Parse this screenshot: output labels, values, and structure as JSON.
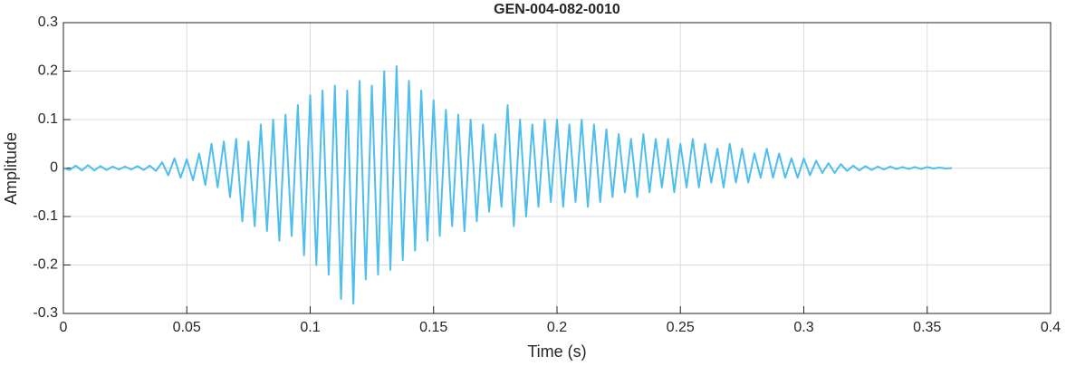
{
  "chart_data": {
    "type": "line",
    "title": "GEN-004-082-0010",
    "xlabel": "Time (s)",
    "ylabel": "Amplitude",
    "color": "#4DBEEE",
    "grid": true,
    "xlim": [
      0,
      0.4
    ],
    "ylim": [
      -0.3,
      0.3
    ],
    "xticks": [
      0,
      0.05,
      0.1,
      0.15,
      0.2,
      0.25,
      0.3,
      0.35,
      0.4
    ],
    "yticks": [
      -0.3,
      -0.2,
      -0.1,
      0,
      0.1,
      0.2,
      0.3
    ],
    "x": [
      0,
      0.0025,
      0.005,
      0.0075,
      0.01,
      0.0125,
      0.015,
      0.0175,
      0.02,
      0.0225,
      0.025,
      0.0275,
      0.03,
      0.0325,
      0.035,
      0.0375,
      0.04,
      0.0425,
      0.045,
      0.0475,
      0.05,
      0.0525,
      0.055,
      0.0575,
      0.06,
      0.0625,
      0.065,
      0.0675,
      0.07,
      0.0725,
      0.075,
      0.0775,
      0.08,
      0.0825,
      0.085,
      0.0875,
      0.09,
      0.0925,
      0.095,
      0.0975,
      0.1,
      0.1025,
      0.105,
      0.1075,
      0.11,
      0.1125,
      0.115,
      0.1175,
      0.12,
      0.1225,
      0.125,
      0.1275,
      0.13,
      0.1325,
      0.135,
      0.1375,
      0.14,
      0.1425,
      0.145,
      0.1475,
      0.15,
      0.1525,
      0.155,
      0.1575,
      0.16,
      0.1625,
      0.165,
      0.1675,
      0.17,
      0.1725,
      0.175,
      0.1775,
      0.18,
      0.1825,
      0.185,
      0.1875,
      0.19,
      0.1925,
      0.195,
      0.1975,
      0.2,
      0.2025,
      0.205,
      0.2075,
      0.21,
      0.2125,
      0.215,
      0.2175,
      0.22,
      0.2225,
      0.225,
      0.2275,
      0.23,
      0.2325,
      0.235,
      0.2375,
      0.24,
      0.2425,
      0.245,
      0.2475,
      0.25,
      0.2525,
      0.255,
      0.2575,
      0.26,
      0.2625,
      0.265,
      0.2675,
      0.27,
      0.2725,
      0.275,
      0.2775,
      0.28,
      0.2825,
      0.285,
      0.2875,
      0.29,
      0.2925,
      0.295,
      0.2975,
      0.3,
      0.3025,
      0.305,
      0.3075,
      0.31,
      0.3125,
      0.315,
      0.3175,
      0.32,
      0.3225,
      0.325,
      0.3275,
      0.33,
      0.3325,
      0.335,
      0.3375,
      0.34,
      0.3425,
      0.345,
      0.3475,
      0.35,
      0.3525,
      0.355,
      0.3575,
      0.36
    ],
    "values": [
      0,
      -0.004,
      0.005,
      -0.005,
      0.006,
      -0.005,
      0.004,
      -0.004,
      0.003,
      -0.003,
      0.003,
      -0.003,
      0.004,
      -0.004,
      0.005,
      -0.006,
      0.012,
      -0.015,
      0.02,
      -0.02,
      0.018,
      -0.025,
      0.03,
      -0.035,
      0.05,
      -0.04,
      0.055,
      -0.06,
      0.06,
      -0.11,
      0.055,
      -0.12,
      0.09,
      -0.13,
      0.1,
      -0.15,
      0.11,
      -0.14,
      0.13,
      -0.18,
      0.15,
      -0.2,
      0.16,
      -0.22,
      0.17,
      -0.27,
      0.16,
      -0.28,
      0.18,
      -0.23,
      0.17,
      -0.22,
      0.2,
      -0.21,
      0.21,
      -0.19,
      0.18,
      -0.17,
      0.16,
      -0.15,
      0.14,
      -0.14,
      0.12,
      -0.12,
      0.11,
      -0.13,
      0.1,
      -0.11,
      0.09,
      -0.09,
      0.07,
      -0.08,
      0.13,
      -0.12,
      0.1,
      -0.1,
      0.09,
      -0.08,
      0.1,
      -0.07,
      0.1,
      -0.08,
      0.09,
      -0.07,
      0.1,
      -0.08,
      0.09,
      -0.07,
      0.08,
      -0.06,
      0.07,
      -0.05,
      0.06,
      -0.06,
      0.07,
      -0.05,
      0.06,
      -0.04,
      0.06,
      -0.05,
      0.05,
      -0.04,
      0.06,
      -0.04,
      0.05,
      -0.03,
      0.04,
      -0.04,
      0.05,
      -0.03,
      0.04,
      -0.03,
      0.03,
      -0.02,
      0.04,
      -0.02,
      0.03,
      -0.02,
      0.02,
      -0.02,
      0.02,
      -0.015,
      0.015,
      -0.01,
      0.01,
      -0.01,
      0.008,
      -0.006,
      0.005,
      -0.005,
      0.004,
      -0.004,
      0.003,
      -0.003,
      0.003,
      -0.002,
      0.002,
      -0.002,
      0.002,
      -0.002,
      0.002,
      -0.001,
      0.001,
      -0.001,
      0
    ]
  }
}
